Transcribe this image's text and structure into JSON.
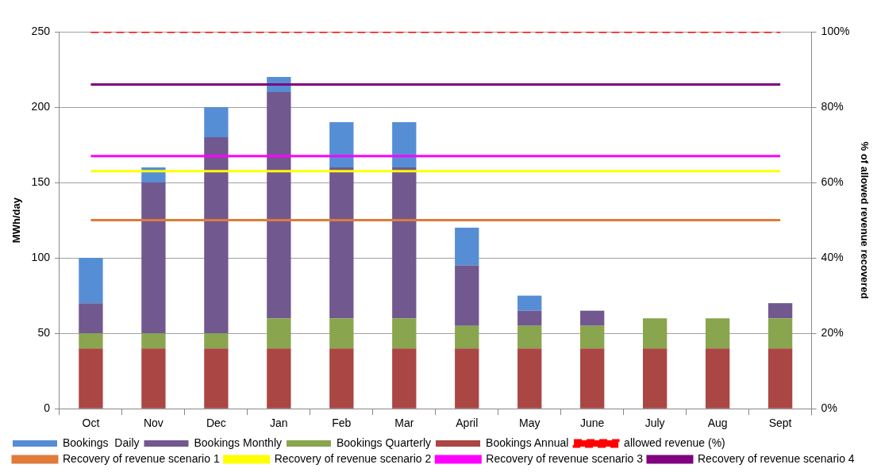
{
  "chart_data": {
    "type": "bar",
    "stacked": true,
    "ylabel": "MWh/day",
    "y2label": "% of allowed revenue recovered",
    "categories": [
      "Oct",
      "Nov",
      "Dec",
      "Jan",
      "Feb",
      "Mar",
      "April",
      "May",
      "June",
      "July",
      "Aug",
      "Sept"
    ],
    "series": [
      {
        "name": "Bookings Annual",
        "color": "#aa4643",
        "values": [
          40,
          40,
          40,
          40,
          40,
          40,
          40,
          40,
          40,
          40,
          40,
          40
        ]
      },
      {
        "name": "Bookings Quarterly",
        "color": "#89a54e",
        "values": [
          10,
          10,
          10,
          20,
          20,
          20,
          15,
          15,
          15,
          20,
          20,
          20
        ]
      },
      {
        "name": "Bookings Monthly",
        "color": "#71588f",
        "values": [
          20,
          100,
          130,
          150,
          100,
          100,
          40,
          10,
          10,
          0,
          0,
          10
        ]
      },
      {
        "name": "Bookings  Daily",
        "color": "#558ed5",
        "values": [
          30,
          10,
          20,
          10,
          30,
          30,
          25,
          10,
          0,
          0,
          0,
          0
        ]
      },
      {
        "name": "allowed revenue (%)",
        "type": "line",
        "axis": "y2",
        "line_style": "dashed",
        "color": "#ff0000",
        "values": [
          100,
          100,
          100,
          100,
          100,
          100,
          100,
          100,
          100,
          100,
          100,
          100
        ]
      },
      {
        "name": "Recovery of revenue scenario 1",
        "type": "line",
        "axis": "y2",
        "color": "#e07b39",
        "values": [
          50,
          50,
          50,
          50,
          50,
          50,
          50,
          50,
          50,
          50,
          50,
          50
        ]
      },
      {
        "name": "Recovery of revenue scenario 2",
        "type": "line",
        "axis": "y2",
        "color": "#ffff00",
        "values": [
          63,
          63,
          63,
          63,
          63,
          63,
          63,
          63,
          63,
          63,
          63,
          63
        ]
      },
      {
        "name": "Recovery of revenue scenario 3",
        "type": "line",
        "axis": "y2",
        "color": "#ff00ff",
        "values": [
          67,
          67,
          67,
          67,
          67,
          67,
          67,
          67,
          67,
          67,
          67,
          67
        ]
      },
      {
        "name": "Recovery of revenue scenario 4",
        "type": "line",
        "axis": "y2",
        "color": "#800080",
        "values": [
          86,
          86,
          86,
          86,
          86,
          86,
          86,
          86,
          86,
          86,
          86,
          86
        ]
      }
    ],
    "ylim": [
      0,
      250
    ],
    "yticks": [
      0,
      50,
      100,
      150,
      200,
      250
    ],
    "y2lim": [
      0,
      100
    ],
    "y2ticks": [
      {
        "value": 0,
        "label": "0%"
      },
      {
        "value": 20,
        "label": "20%"
      },
      {
        "value": 40,
        "label": "40%"
      },
      {
        "value": 60,
        "label": "60%"
      },
      {
        "value": 80,
        "label": "80%"
      },
      {
        "value": 100,
        "label": "100%"
      }
    ],
    "grid": "y",
    "legend": "bottom",
    "marker": "none"
  }
}
